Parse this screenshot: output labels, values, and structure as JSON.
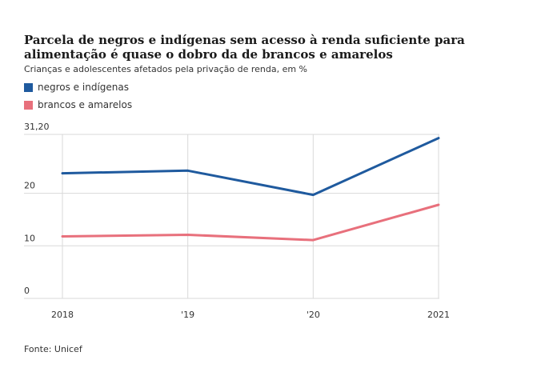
{
  "title": "Parcela de negros e indígenas sem acesso à renda suficiente para alimentação é quase o dobro da de brancos e amarelos",
  "subtitle": "Crianças e adolescentes afetados pela privação de renda, em %",
  "source": "Fonte: Unicef",
  "colors": {
    "negros": "#1f5a9e",
    "brancos": "#e8707c",
    "grid": "#d9d9d9",
    "axis": "#bdbdbd"
  },
  "chart_data": {
    "type": "line",
    "title": "Parcela de negros e indígenas sem acesso à renda suficiente para alimentação é quase o dobro da de brancos e amarelos",
    "subtitle": "Crianças e adolescentes afetados pela privação de renda, em %",
    "x": [
      "2018",
      "2019",
      "2020",
      "2021"
    ],
    "x_tick_labels": [
      "2018",
      "'19",
      "'20",
      "2021"
    ],
    "y_ticks": [
      0,
      10,
      20,
      31.2
    ],
    "y_tick_labels": [
      "0",
      "10",
      "20",
      "31,20"
    ],
    "ylim": [
      0,
      31.2
    ],
    "grid": true,
    "legend_placement": "top-left",
    "series": [
      {
        "name": "negros e indígenas",
        "color": "#1f5a9e",
        "values": [
          23.8,
          24.3,
          19.7,
          30.5
        ]
      },
      {
        "name": "brancos e amarelos",
        "color": "#e8707c",
        "values": [
          11.8,
          12.1,
          11.1,
          17.8
        ]
      }
    ]
  }
}
